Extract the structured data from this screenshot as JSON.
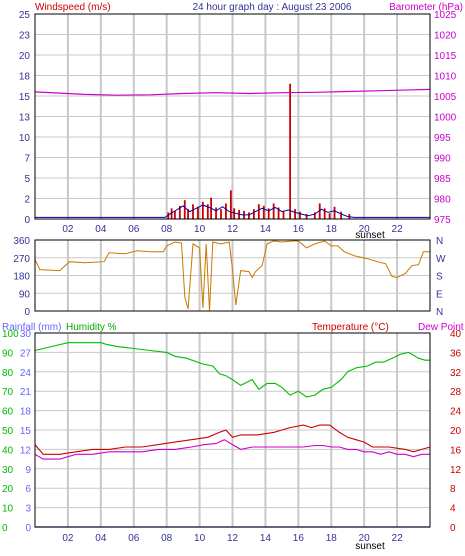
{
  "colors": {
    "wind": "#cc0000",
    "gust": "#0000aa",
    "barometer": "#cc00cc",
    "direction": "#cc7700",
    "rain": "#6666ff",
    "humidity": "#00bb00",
    "temperature": "#cc0000",
    "dewpoint": "#cc00cc",
    "grid": "#c8c8c8",
    "frame": "#000000"
  },
  "header": {
    "left_label": "Windspeed (m/s)",
    "title": "24 hour graph day : August 23 2006",
    "right_label": "Barometer (hPa)"
  },
  "x_axis": {
    "ticks": [
      "02",
      "04",
      "06",
      "08",
      "10",
      "12",
      "14",
      "16",
      "18",
      "20",
      "22"
    ],
    "sunset_label": "sunset"
  },
  "bottom_header": {
    "rain_label": "Rainfall (mm)",
    "humidity_label": "Humidity %",
    "temperature_label": "Temperature (°C)",
    "dew_label": "Dew Point"
  },
  "chart_data": [
    {
      "type": "bar",
      "name": "wind",
      "xlim": [
        0,
        24
      ],
      "ylim_left": [
        0,
        25
      ],
      "ylim_right": [
        975,
        1025
      ],
      "y_ticks_left": [
        0,
        2,
        5,
        7,
        10,
        13,
        15,
        18,
        20,
        23,
        25
      ],
      "y_ticks_right": [
        975,
        980,
        985,
        990,
        995,
        1000,
        1005,
        1010,
        1015,
        1020,
        1025
      ],
      "wind_bars": [
        [
          8.1,
          0.8
        ],
        [
          8.3,
          1.3
        ],
        [
          8.5,
          1.0
        ],
        [
          8.8,
          1.6
        ],
        [
          9.1,
          2.3
        ],
        [
          9.3,
          1.2
        ],
        [
          9.6,
          1.8
        ],
        [
          9.9,
          1.5
        ],
        [
          10.2,
          2.1
        ],
        [
          10.5,
          1.8
        ],
        [
          10.7,
          2.6
        ],
        [
          11.0,
          1.4
        ],
        [
          11.3,
          1.2
        ],
        [
          11.6,
          1.9
        ],
        [
          11.9,
          3.5
        ],
        [
          12.1,
          1.3
        ],
        [
          12.4,
          1.1
        ],
        [
          12.7,
          1.0
        ],
        [
          13.0,
          0.8
        ],
        [
          13.3,
          1.2
        ],
        [
          13.6,
          1.8
        ],
        [
          13.9,
          1.6
        ],
        [
          14.2,
          1.3
        ],
        [
          14.5,
          1.9
        ],
        [
          14.8,
          1.4
        ],
        [
          15.1,
          0.9
        ],
        [
          15.5,
          16.5
        ],
        [
          15.8,
          1.2
        ],
        [
          16.1,
          0.9
        ],
        [
          16.5,
          0.6
        ],
        [
          17.0,
          0.8
        ],
        [
          17.3,
          1.9
        ],
        [
          17.6,
          1.3
        ],
        [
          17.9,
          0.7
        ],
        [
          18.2,
          1.5
        ],
        [
          18.6,
          0.9
        ],
        [
          19.1,
          0.6
        ]
      ],
      "gust_line": [
        [
          0,
          0.2
        ],
        [
          7.9,
          0.2
        ],
        [
          8.2,
          0.6
        ],
        [
          8.6,
          1.1
        ],
        [
          9.0,
          1.6
        ],
        [
          9.4,
          0.9
        ],
        [
          9.8,
          1.3
        ],
        [
          10.2,
          1.7
        ],
        [
          10.6,
          1.4
        ],
        [
          11.0,
          1.0
        ],
        [
          11.4,
          1.5
        ],
        [
          11.8,
          0.9
        ],
        [
          12.2,
          0.7
        ],
        [
          12.6,
          0.5
        ],
        [
          13.0,
          0.5
        ],
        [
          13.4,
          0.9
        ],
        [
          13.8,
          1.3
        ],
        [
          14.2,
          1.0
        ],
        [
          14.6,
          1.4
        ],
        [
          15.0,
          0.9
        ],
        [
          15.4,
          1.1
        ],
        [
          15.8,
          0.8
        ],
        [
          16.2,
          0.6
        ],
        [
          16.6,
          0.4
        ],
        [
          17.0,
          0.6
        ],
        [
          17.4,
          1.2
        ],
        [
          17.8,
          0.8
        ],
        [
          18.2,
          1.0
        ],
        [
          18.6,
          0.6
        ],
        [
          19.0,
          0.3
        ],
        [
          19.4,
          0.2
        ],
        [
          24,
          0.2
        ]
      ],
      "barometer": [
        [
          0,
          1006.0
        ],
        [
          3,
          1005.4
        ],
        [
          5,
          1005.2
        ],
        [
          7,
          1005.3
        ],
        [
          9,
          1005.6
        ],
        [
          11,
          1005.8
        ],
        [
          13,
          1005.6
        ],
        [
          15,
          1005.8
        ],
        [
          17,
          1005.9
        ],
        [
          19,
          1006.1
        ],
        [
          21,
          1006.3
        ],
        [
          23,
          1006.5
        ],
        [
          24,
          1006.6
        ]
      ]
    },
    {
      "type": "line",
      "name": "wind_direction",
      "xlim": [
        0,
        24
      ],
      "ylim": [
        0,
        360
      ],
      "y_ticks_left": [
        0,
        90,
        180,
        270,
        360
      ],
      "y_ticks_right": [
        "N",
        "E",
        "S",
        "W",
        "N"
      ],
      "points": [
        [
          0,
          260
        ],
        [
          0.3,
          210
        ],
        [
          1.5,
          205
        ],
        [
          2.1,
          250
        ],
        [
          3.0,
          245
        ],
        [
          4.2,
          250
        ],
        [
          4.5,
          295
        ],
        [
          5.5,
          290
        ],
        [
          6.2,
          305
        ],
        [
          7.0,
          300
        ],
        [
          7.8,
          300
        ],
        [
          8.0,
          330
        ],
        [
          8.5,
          350
        ],
        [
          8.9,
          345
        ],
        [
          9.1,
          70
        ],
        [
          9.3,
          10
        ],
        [
          9.6,
          340
        ],
        [
          10.0,
          320
        ],
        [
          10.2,
          15
        ],
        [
          10.4,
          340
        ],
        [
          10.6,
          0
        ],
        [
          10.8,
          350
        ],
        [
          11.3,
          340
        ],
        [
          11.8,
          350
        ],
        [
          12.0,
          210
        ],
        [
          12.2,
          30
        ],
        [
          12.5,
          205
        ],
        [
          13.0,
          200
        ],
        [
          13.2,
          170
        ],
        [
          13.4,
          200
        ],
        [
          13.8,
          230
        ],
        [
          14.1,
          340
        ],
        [
          14.5,
          355
        ],
        [
          15.0,
          350
        ],
        [
          15.7,
          355
        ],
        [
          16.0,
          355
        ],
        [
          16.5,
          320
        ],
        [
          17.0,
          340
        ],
        [
          17.6,
          355
        ],
        [
          18.0,
          330
        ],
        [
          18.4,
          330
        ],
        [
          18.8,
          300
        ],
        [
          19.4,
          280
        ],
        [
          20.2,
          265
        ],
        [
          20.8,
          250
        ],
        [
          21.3,
          240
        ],
        [
          21.7,
          175
        ],
        [
          22.0,
          170
        ],
        [
          22.5,
          190
        ],
        [
          22.9,
          230
        ],
        [
          23.3,
          235
        ],
        [
          23.6,
          300
        ],
        [
          24,
          300
        ]
      ]
    },
    {
      "type": "line",
      "name": "bottom",
      "xlim": [
        0,
        24
      ],
      "ylim_rain": [
        0,
        30
      ],
      "ylim_humidity": [
        0,
        100
      ],
      "ylim_temperature": [
        0,
        40
      ],
      "rain_ticks": [
        0,
        3,
        6,
        9,
        12,
        15,
        18,
        21,
        24,
        27,
        30
      ],
      "humidity_ticks": [
        0,
        10,
        20,
        30,
        40,
        50,
        60,
        70,
        80,
        90,
        100
      ],
      "temperature_ticks": [
        0,
        4,
        8,
        12,
        16,
        20,
        24,
        28,
        32,
        36,
        40
      ],
      "rainfall": [
        [
          0,
          0
        ],
        [
          24,
          0
        ]
      ],
      "humidity": [
        [
          0,
          91
        ],
        [
          1,
          93
        ],
        [
          2,
          95
        ],
        [
          3,
          95
        ],
        [
          4,
          95
        ],
        [
          4.4,
          94
        ],
        [
          5.0,
          93
        ],
        [
          6.0,
          92
        ],
        [
          7.0,
          91
        ],
        [
          8.0,
          90
        ],
        [
          8.5,
          88
        ],
        [
          9.2,
          87
        ],
        [
          10.2,
          84
        ],
        [
          10.8,
          83
        ],
        [
          11.2,
          79
        ],
        [
          11.6,
          78
        ],
        [
          12.0,
          76
        ],
        [
          12.5,
          73
        ],
        [
          13.2,
          76
        ],
        [
          13.6,
          71
        ],
        [
          14.1,
          74
        ],
        [
          14.6,
          74
        ],
        [
          15.0,
          72
        ],
        [
          15.5,
          68
        ],
        [
          16.0,
          70
        ],
        [
          16.5,
          67
        ],
        [
          17.0,
          68
        ],
        [
          17.5,
          71
        ],
        [
          18.0,
          72
        ],
        [
          18.6,
          76
        ],
        [
          19.0,
          80
        ],
        [
          19.5,
          82
        ],
        [
          20.2,
          83
        ],
        [
          20.7,
          85
        ],
        [
          21.2,
          85
        ],
        [
          21.7,
          87
        ],
        [
          22.2,
          89
        ],
        [
          22.7,
          90
        ],
        [
          23.3,
          87
        ],
        [
          23.7,
          86
        ],
        [
          24,
          86
        ]
      ],
      "temperature": [
        [
          0,
          17
        ],
        [
          0.5,
          15
        ],
        [
          1.5,
          15
        ],
        [
          2.5,
          15.5
        ],
        [
          3.5,
          16
        ],
        [
          4.5,
          16
        ],
        [
          5.5,
          16.5
        ],
        [
          6.5,
          16.5
        ],
        [
          7.5,
          17
        ],
        [
          8.5,
          17.5
        ],
        [
          9.5,
          18
        ],
        [
          10.5,
          18.5
        ],
        [
          11.2,
          19.5
        ],
        [
          11.6,
          20
        ],
        [
          12.0,
          18.5
        ],
        [
          12.5,
          19
        ],
        [
          13.5,
          19
        ],
        [
          14.5,
          19.5
        ],
        [
          15.0,
          20
        ],
        [
          15.5,
          20.5
        ],
        [
          16.3,
          21
        ],
        [
          16.8,
          20.5
        ],
        [
          17.3,
          21
        ],
        [
          17.9,
          21
        ],
        [
          18.5,
          19.5
        ],
        [
          19.0,
          18.5
        ],
        [
          19.5,
          18
        ],
        [
          20.0,
          17.5
        ],
        [
          20.5,
          16.5
        ],
        [
          21.5,
          16.5
        ],
        [
          22.5,
          16
        ],
        [
          23.0,
          15.5
        ],
        [
          23.5,
          16
        ],
        [
          24,
          16.5
        ]
      ],
      "dewpoint": [
        [
          0,
          15
        ],
        [
          0.5,
          14
        ],
        [
          1.5,
          14
        ],
        [
          2.5,
          15
        ],
        [
          3.5,
          15
        ],
        [
          4.5,
          15.5
        ],
        [
          5.5,
          15.5
        ],
        [
          6.5,
          15.5
        ],
        [
          7.5,
          16
        ],
        [
          8.5,
          16
        ],
        [
          9.5,
          16.5
        ],
        [
          10.3,
          17
        ],
        [
          11.0,
          17.2
        ],
        [
          11.5,
          18
        ],
        [
          12.0,
          17
        ],
        [
          12.5,
          16
        ],
        [
          13.2,
          16.5
        ],
        [
          14.0,
          16.5
        ],
        [
          14.8,
          16.5
        ],
        [
          15.5,
          16.5
        ],
        [
          16.3,
          16.5
        ],
        [
          17.0,
          16.8
        ],
        [
          17.5,
          16.8
        ],
        [
          18.0,
          16.5
        ],
        [
          18.5,
          16.5
        ],
        [
          19.0,
          16
        ],
        [
          19.5,
          16
        ],
        [
          20.0,
          15.5
        ],
        [
          20.5,
          15.5
        ],
        [
          21.0,
          15
        ],
        [
          21.5,
          15.5
        ],
        [
          22.0,
          15
        ],
        [
          22.5,
          15
        ],
        [
          23.0,
          14.5
        ],
        [
          23.5,
          15
        ],
        [
          24,
          15
        ]
      ]
    }
  ]
}
